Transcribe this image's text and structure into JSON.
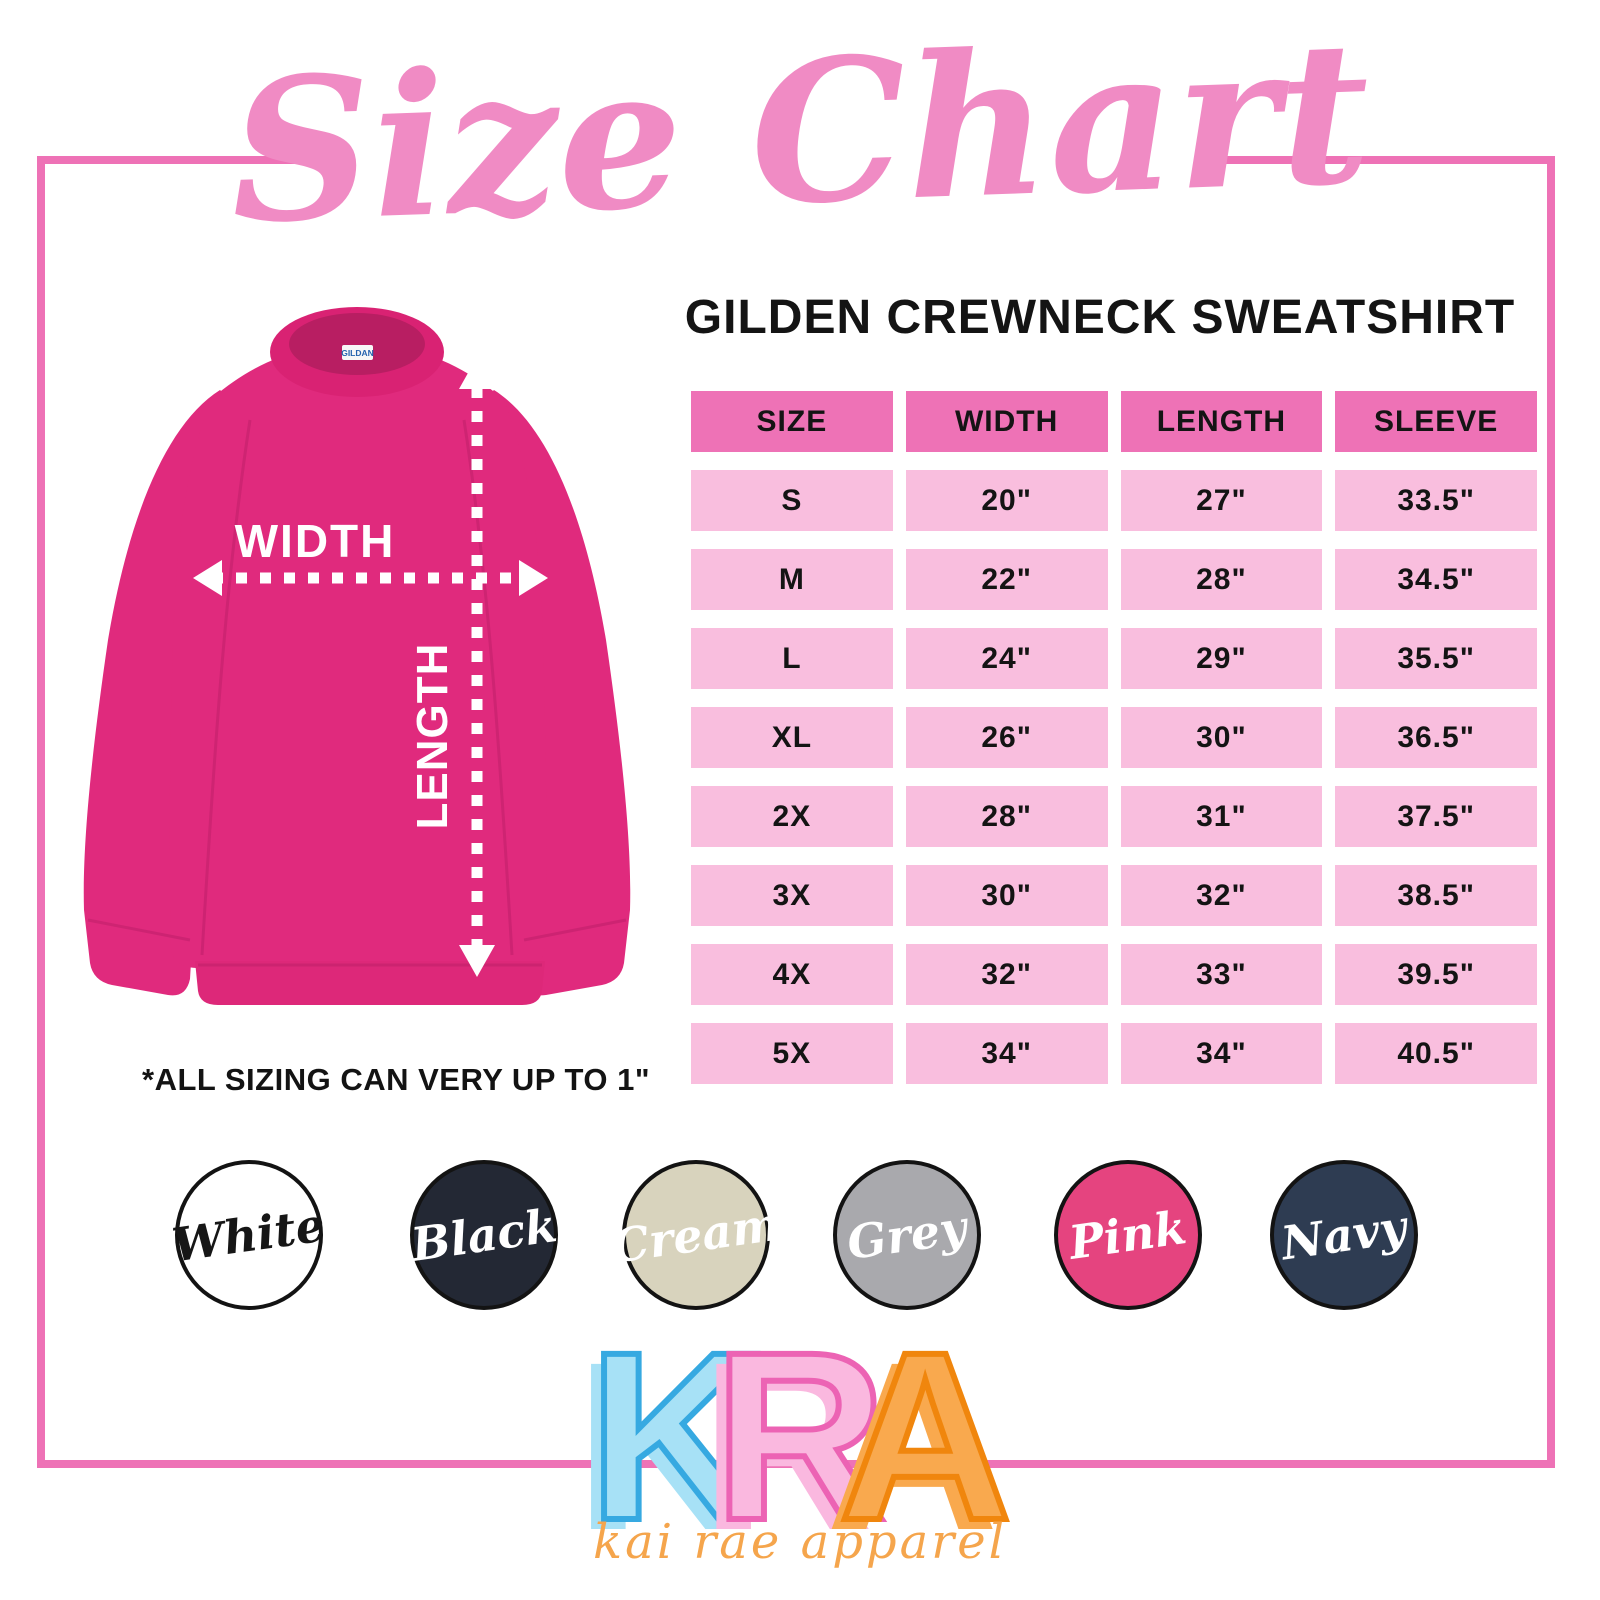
{
  "header": {
    "script_title": "Size Chart",
    "product_title": "GILDEN CREWNECK SWEATSHIRT"
  },
  "measurement_diagram": {
    "width_label": "WIDTH",
    "length_label": "LENGTH",
    "collar_tag": "GILDAN",
    "shirt_color": "#e02a7d"
  },
  "chart_data": {
    "type": "table",
    "title": "GILDEN CREWNECK SWEATSHIRT",
    "columns": [
      "SIZE",
      "WIDTH",
      "LENGTH",
      "SLEEVE"
    ],
    "rows": [
      [
        "S",
        "20\"",
        "27\"",
        "33.5\""
      ],
      [
        "M",
        "22\"",
        "28\"",
        "34.5\""
      ],
      [
        "L",
        "24\"",
        "29\"",
        "35.5\""
      ],
      [
        "XL",
        "26\"",
        "30\"",
        "36.5\""
      ],
      [
        "2X",
        "28\"",
        "31\"",
        "37.5\""
      ],
      [
        "3X",
        "30\"",
        "32\"",
        "38.5\""
      ],
      [
        "4X",
        "32\"",
        "33\"",
        "39.5\""
      ],
      [
        "5X",
        "34\"",
        "34\"",
        "40.5\""
      ]
    ],
    "header_bg": "#ee72b6",
    "row_bg": "#f9bede"
  },
  "note": "*ALL SIZING CAN VERY UP TO 1\"",
  "color_swatches": [
    {
      "label": "White",
      "fill": "#ffffff",
      "label_color": "#161616"
    },
    {
      "label": "Black",
      "fill": "#232834",
      "label_color": "#ffffff"
    },
    {
      "label": "Cream",
      "fill": "#d8d3bd",
      "label_color": "#ffffff"
    },
    {
      "label": "Grey",
      "fill": "#a9a9ad",
      "label_color": "#ffffff"
    },
    {
      "label": "Pink",
      "fill": "#e5447f",
      "label_color": "#ffffff"
    },
    {
      "label": "Navy",
      "fill": "#2e3c52",
      "label_color": "#ffffff"
    }
  ],
  "brand": {
    "letters": [
      {
        "char": "K",
        "fill": "#a7e1f6",
        "outline": "#36a9e1"
      },
      {
        "char": "R",
        "fill": "#fab8df",
        "outline": "#ec63b4"
      },
      {
        "char": "A",
        "fill": "#f9a94e",
        "outline": "#f0860d"
      }
    ],
    "tagline": "kai rae apparel"
  },
  "frame_color": "#ee72b6",
  "title_color": "#f08bc4"
}
